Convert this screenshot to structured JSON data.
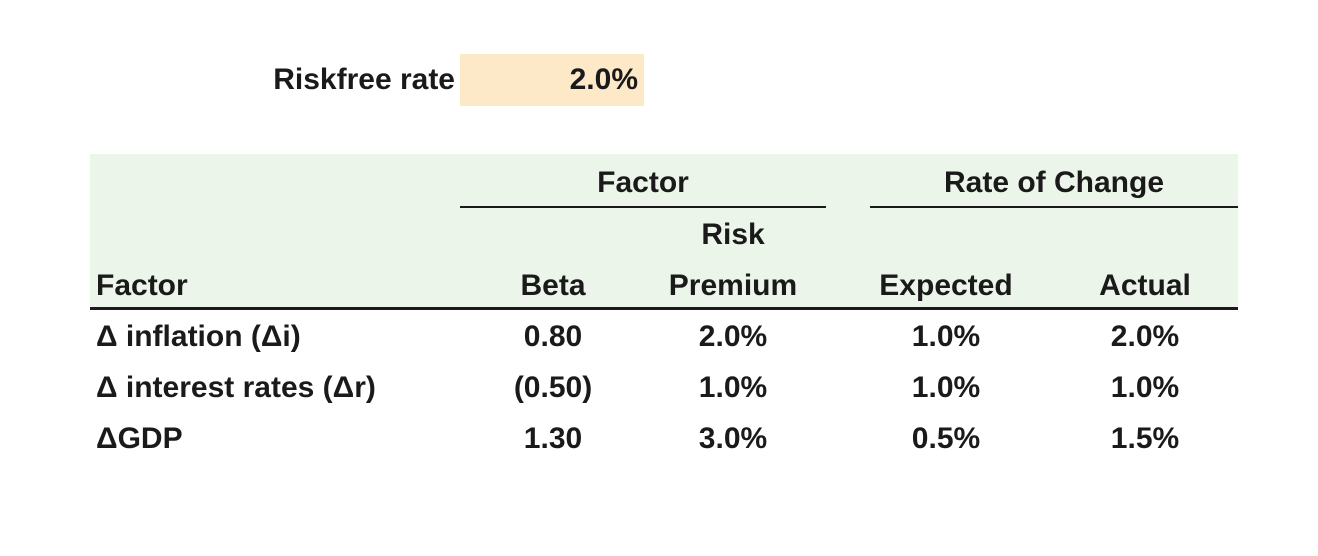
{
  "riskfree": {
    "label": "Riskfree rate",
    "value": "2.0%"
  },
  "table": {
    "group_headers": {
      "factor": "Factor",
      "rate_of_change": "Rate of Change"
    },
    "columns": {
      "factor": "Factor",
      "beta": "Beta",
      "risk_premium_line1": "Risk",
      "risk_premium_line2": "Premium",
      "expected": "Expected",
      "actual": "Actual"
    },
    "rows": [
      {
        "factor": "Δ inflation (Δi)",
        "beta": "0.80",
        "risk_premium": "2.0%",
        "expected": "1.0%",
        "actual": "2.0%"
      },
      {
        "factor": "Δ interest rates (Δr)",
        "beta": "(0.50)",
        "risk_premium": "1.0%",
        "expected": "1.0%",
        "actual": "1.0%"
      },
      {
        "factor": "ΔGDP",
        "beta": "1.30",
        "risk_premium": "3.0%",
        "expected": "0.5%",
        "actual": "1.5%"
      }
    ]
  },
  "colors": {
    "input_cell_fill": "#fde9c8",
    "header_fill": "#ecf5e9",
    "text": "#1a1a1a"
  }
}
